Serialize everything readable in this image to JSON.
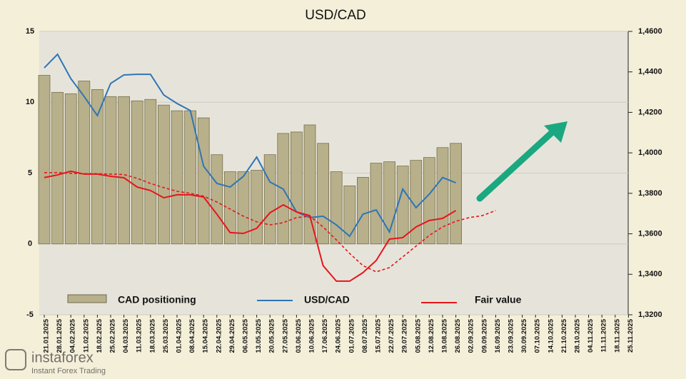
{
  "chart_data": {
    "type": "combo",
    "title": "USD/CAD",
    "categories": [
      "21.01.2025",
      "28.01.2025",
      "04.02.2025",
      "11.02.2025",
      "18.02.2025",
      "25.02.2025",
      "04.03.2025",
      "11.03.2025",
      "18.03.2025",
      "25.03.2025",
      "01.04.2025",
      "08.04.2025",
      "15.04.2025",
      "22.04.2025",
      "29.04.2025",
      "06.05.2025",
      "13.05.2025",
      "20.05.2025",
      "27.05.2025",
      "03.06.2025",
      "10.06.2025",
      "17.06.2025",
      "24.06.2025",
      "01.07.2025",
      "08.07.2025",
      "15.07.2025",
      "22.07.2025",
      "29.07.2025",
      "05.08.2025",
      "12.08.2025",
      "19.08.2025",
      "26.08.2025",
      "02.09.2025",
      "09.09.2025",
      "16.09.2025",
      "23.09.2025",
      "30.09.2025",
      "07.10.2025",
      "14.10.2025",
      "21.10.2025",
      "28.10.2025",
      "04.11.2025",
      "11.11.2025",
      "18.11.2025",
      "25.11.2025"
    ],
    "series": [
      {
        "name": "CAD positioning",
        "type": "bar",
        "color": "#b8b08a",
        "values": [
          11.9,
          10.7,
          10.6,
          11.5,
          10.9,
          10.4,
          10.4,
          10.1,
          10.2,
          9.8,
          9.4,
          9.4,
          8.9,
          6.3,
          5.1,
          5.1,
          5.2,
          6.3,
          7.8,
          7.9,
          8.4,
          7.1,
          5.1,
          4.1,
          4.7,
          5.7,
          5.8,
          5.5,
          5.9,
          6.1,
          6.8,
          7.1,
          null,
          null,
          null,
          null,
          null,
          null,
          null,
          null,
          null,
          null,
          null,
          null,
          null
        ]
      },
      {
        "name": "USD/CAD",
        "type": "line",
        "axis": "y2",
        "color": "#2e75b6",
        "values": [
          1.442,
          1.4487,
          1.4367,
          1.4279,
          1.4184,
          1.4343,
          1.4385,
          1.4388,
          1.4388,
          1.4286,
          1.4244,
          1.4209,
          1.3934,
          1.3849,
          1.3831,
          1.3884,
          1.3979,
          1.3856,
          1.3821,
          1.3708,
          1.368,
          1.3687,
          1.3644,
          1.3588,
          1.3697,
          1.3718,
          1.3609,
          1.3821,
          1.3729,
          1.3796,
          1.3878,
          1.3852,
          null,
          null,
          null,
          null,
          null,
          null,
          null,
          null,
          null,
          null,
          null,
          null,
          null
        ]
      },
      {
        "name": "Fair value",
        "type": "line",
        "axis": "y2",
        "color": "#e8141c",
        "values": [
          1.3878,
          1.3891,
          1.3909,
          1.3895,
          1.3895,
          1.3884,
          1.3877,
          1.3831,
          1.3814,
          1.3778,
          1.3793,
          1.3793,
          1.3782,
          1.3697,
          1.3606,
          1.3602,
          1.3627,
          1.3704,
          1.3743,
          1.3708,
          1.369,
          1.3443,
          1.3366,
          1.3366,
          1.3408,
          1.3468,
          1.3574,
          1.3581,
          1.3634,
          1.3666,
          1.3676,
          1.3715,
          null,
          null,
          null,
          null,
          null,
          null,
          null,
          null,
          null,
          null,
          null,
          null,
          null
        ]
      },
      {
        "type": "line",
        "axis": "y2",
        "color": "#e8141c",
        "dashed": true,
        "values": [
          1.3902,
          1.3902,
          1.3899,
          1.3897,
          1.3897,
          1.3895,
          1.3893,
          1.3874,
          1.3849,
          1.3828,
          1.381,
          1.38,
          1.3786,
          1.3757,
          1.3722,
          1.3687,
          1.3659,
          1.3644,
          1.3655,
          1.368,
          1.3687,
          1.3634,
          1.357,
          1.3503,
          1.3443,
          1.3412,
          1.3433,
          1.3486,
          1.3539,
          1.3592,
          1.3634,
          1.3662,
          1.368,
          1.369,
          1.3715,
          null,
          null,
          null,
          null,
          null,
          null,
          null,
          null,
          null,
          null
        ]
      }
    ],
    "ylim": [
      -5,
      15
    ],
    "yticks": [
      -5,
      0,
      5,
      10,
      15
    ],
    "y2lim": [
      1.32,
      1.46
    ],
    "y2ticks": [
      {
        "value": 1.32,
        "label": "1,3200"
      },
      {
        "value": 1.34,
        "label": "1,3400"
      },
      {
        "value": 1.36,
        "label": "1,3600"
      },
      {
        "value": 1.38,
        "label": "1,3800"
      },
      {
        "value": 1.4,
        "label": "1,4000"
      },
      {
        "value": 1.42,
        "label": "1,4200"
      },
      {
        "value": 1.44,
        "label": "1,4400"
      },
      {
        "value": 1.46,
        "label": "1,4600"
      }
    ],
    "grid": true,
    "watermark": {
      "brand": "instaforex",
      "tagline": "Instant Forex Trading"
    }
  }
}
